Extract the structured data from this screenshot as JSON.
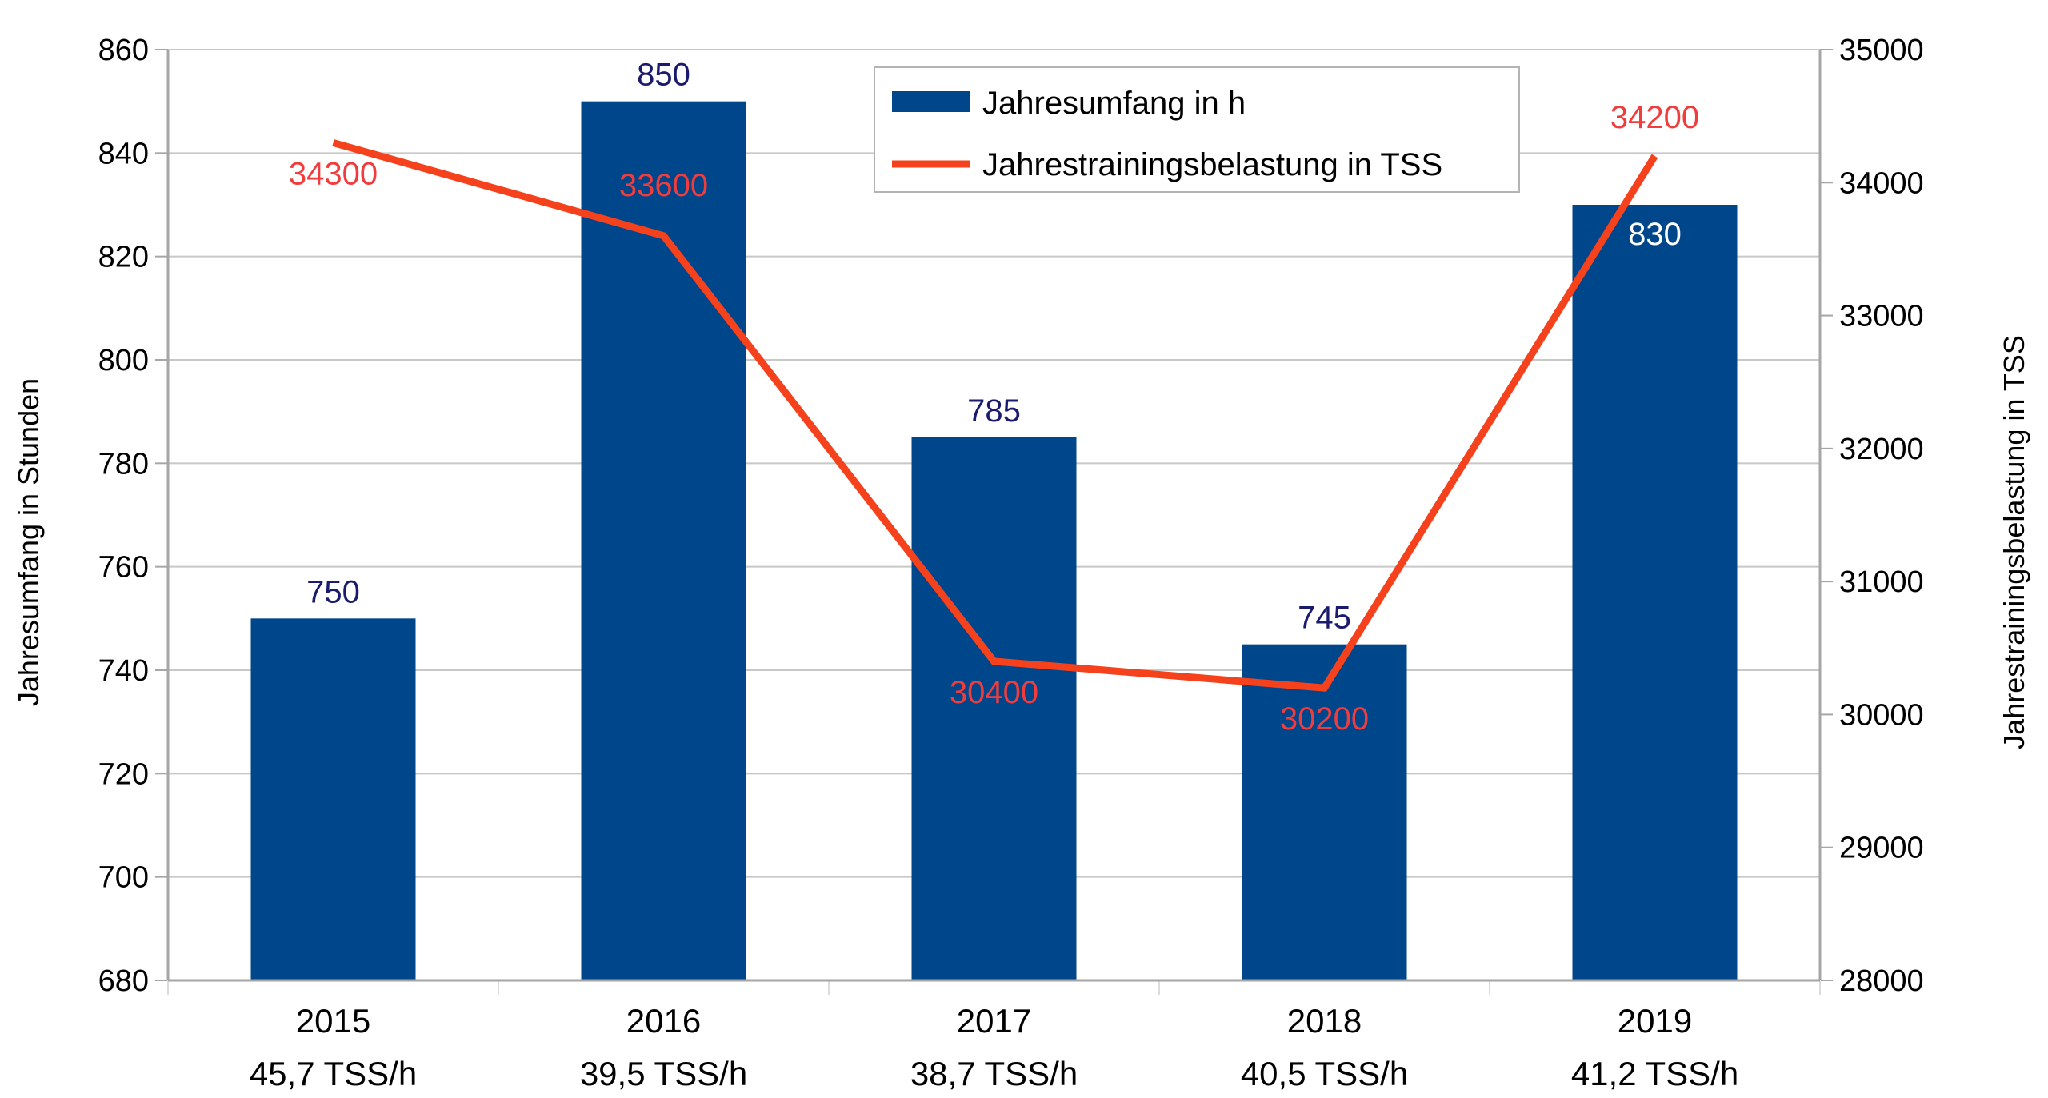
{
  "chart_data": {
    "type": "bar",
    "categories": [
      "2015",
      "2016",
      "2017",
      "2018",
      "2019"
    ],
    "category_sublabels": [
      "45,7 TSS/h",
      "39,5 TSS/h",
      "38,7 TSS/h",
      "40,5 TSS/h",
      "41,2 TSS/h"
    ],
    "title": "",
    "ylabel": "Jahresumfang in Stunden",
    "y2label": "Jahrestrainingsbelastung in TSS",
    "ylim": [
      680,
      860
    ],
    "yticks": [
      680,
      700,
      720,
      740,
      760,
      780,
      800,
      820,
      840,
      860
    ],
    "y2lim": [
      28000,
      35000
    ],
    "y2ticks": [
      28000,
      29000,
      30000,
      31000,
      32000,
      33000,
      34000,
      35000
    ],
    "grid": true,
    "legend": "top-center",
    "series": [
      {
        "name": "Jahresumfang in h",
        "kind": "bar",
        "axis": "left",
        "values": [
          750,
          850,
          785,
          745,
          830
        ],
        "labels": [
          "750",
          "850",
          "785",
          "745",
          "830"
        ],
        "color": "#00468b",
        "label_color": "#1a1a6e",
        "label_inside_color": "#ffffff"
      },
      {
        "name": "Jahrestrainingsbelastung in TSS",
        "kind": "line",
        "axis": "right",
        "values": [
          34300,
          33600,
          30400,
          30200,
          34200
        ],
        "labels": [
          "34300",
          "33600",
          "30400",
          "30200",
          "34200"
        ],
        "color": "#f5421d",
        "label_color": "#f03c3c"
      }
    ]
  }
}
